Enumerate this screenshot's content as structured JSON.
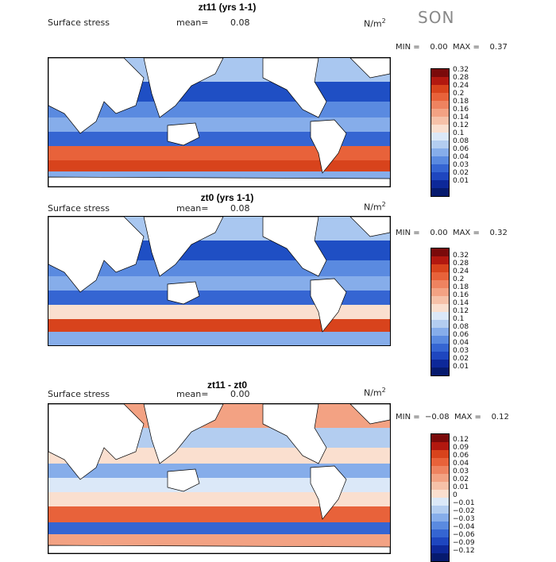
{
  "season": "SON",
  "panels": [
    {
      "title": "zt11 (yrs 1-1)",
      "subtitle": "Surface stress",
      "mean_label": "mean=",
      "mean_value": "0.08",
      "unit": "N/m",
      "unit_sup": "2",
      "minmax": "MIN =    0.00  MAX =    0.37",
      "legend": [
        "0.32",
        "0.28",
        "0.24",
        "0.2",
        "0.18",
        "0.16",
        "0.14",
        "0.12",
        "0.1",
        "0.08",
        "0.06",
        "0.04",
        "0.03",
        "0.02",
        "0.01"
      ],
      "colors": [
        "#7a0a0a",
        "#b2180f",
        "#d8431c",
        "#e8623a",
        "#ee8360",
        "#f3a283",
        "#f6c1a8",
        "#fadfcf",
        "#dbe8f8",
        "#b3cdf0",
        "#86adea",
        "#5a8ae0",
        "#3565d2",
        "#1e46bf",
        "#0d2899",
        "#061a6e"
      ]
    },
    {
      "title": "zt0 (yrs 1-1)",
      "subtitle": "Surface stress",
      "mean_label": "mean=",
      "mean_value": "0.08",
      "unit": "N/m",
      "unit_sup": "2",
      "minmax": "MIN =    0.00  MAX =    0.32",
      "legend": [
        "0.32",
        "0.28",
        "0.24",
        "0.2",
        "0.18",
        "0.16",
        "0.14",
        "0.12",
        "0.1",
        "0.08",
        "0.06",
        "0.04",
        "0.03",
        "0.02",
        "0.01"
      ],
      "colors": [
        "#7a0a0a",
        "#b2180f",
        "#d8431c",
        "#e8623a",
        "#ee8360",
        "#f3a283",
        "#f6c1a8",
        "#fadfcf",
        "#dbe8f8",
        "#b3cdf0",
        "#86adea",
        "#5a8ae0",
        "#3565d2",
        "#1e46bf",
        "#0d2899",
        "#061a6e"
      ]
    },
    {
      "title": "zt11 - zt0",
      "subtitle": "Surface stress",
      "mean_label": "mean=",
      "mean_value": "0.00",
      "unit": "N/m",
      "unit_sup": "2",
      "minmax": "MIN =  −0.08  MAX =    0.12",
      "legend": [
        "0.12",
        "0.09",
        "0.06",
        "0.04",
        "0.03",
        "0.02",
        "0.01",
        "0",
        "−0.01",
        "−0.02",
        "−0.03",
        "−0.04",
        "−0.06",
        "−0.09",
        "−0.12"
      ],
      "colors": [
        "#7a0a0a",
        "#b2180f",
        "#d8431c",
        "#e8623a",
        "#ee8360",
        "#f3a283",
        "#f6c1a8",
        "#fadfcf",
        "#dbe8f8",
        "#b3cdf0",
        "#86adea",
        "#5a8ae0",
        "#3565d2",
        "#1e46bf",
        "#0d2899",
        "#061a6e"
      ]
    }
  ]
}
